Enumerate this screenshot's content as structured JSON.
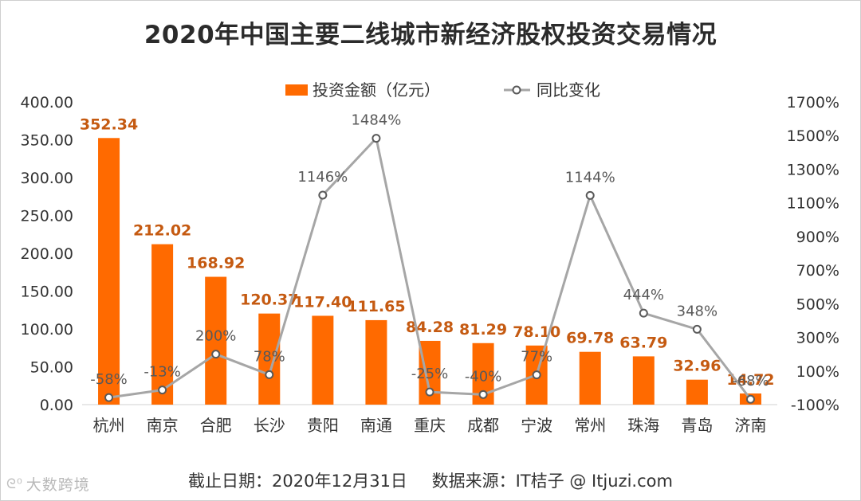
{
  "title": "2020年中国主要二线城市新经济股权投资交易情况",
  "footer": {
    "date": "截止日期：2020年12月31日",
    "source": "数据来源：IT桔子 @ Itjuzi.com"
  },
  "watermark": "大数跨境",
  "colors": {
    "bar": "#FF6A00",
    "bar_label": "#C55A11",
    "line": "#A6A6A6",
    "marker_fill": "#FFFFFF",
    "marker_stroke": "#595959",
    "text": "#333333"
  },
  "chart_data": {
    "type": "bar",
    "title": "2020年中国主要二线城市新经济股权投资交易情况",
    "legend_position": "top",
    "categories": [
      "杭州",
      "南京",
      "合肥",
      "长沙",
      "贵阳",
      "南通",
      "重庆",
      "成都",
      "宁波",
      "常州",
      "珠海",
      "青岛",
      "济南"
    ],
    "series": [
      {
        "name": "投资金额（亿元）",
        "type": "bar",
        "axis": "left",
        "values": [
          352.34,
          212.02,
          168.92,
          120.37,
          117.4,
          111.65,
          84.28,
          81.29,
          78.1,
          69.78,
          63.79,
          32.96,
          14.72
        ],
        "labels": [
          "352.34",
          "212.02",
          "168.92",
          "120.37",
          "117.40",
          "111.65",
          "84.28",
          "81.29",
          "78.10",
          "69.78",
          "63.79",
          "32.96",
          "14.72"
        ]
      },
      {
        "name": "同比变化",
        "type": "line",
        "axis": "right",
        "values": [
          -58,
          -13,
          200,
          78,
          1146,
          1484,
          -25,
          -40,
          77,
          1144,
          444,
          348,
          -68
        ],
        "labels": [
          "-58%",
          "-13%",
          "200%",
          "78%",
          "1146%",
          "1484%",
          "-25%",
          "-40%",
          "77%",
          "1144%",
          "444%",
          "348%",
          "-68%"
        ]
      }
    ],
    "y_left": {
      "min": 0,
      "max": 400,
      "ticks": [
        "0.00",
        "50.00",
        "100.00",
        "150.00",
        "200.00",
        "250.00",
        "300.00",
        "350.00",
        "400.00"
      ]
    },
    "y_right": {
      "min": -100,
      "max": 1700,
      "ticks": [
        "-100%",
        "100%",
        "300%",
        "500%",
        "700%",
        "900%",
        "1100%",
        "1300%",
        "1500%",
        "1700%"
      ]
    },
    "grid": false
  }
}
